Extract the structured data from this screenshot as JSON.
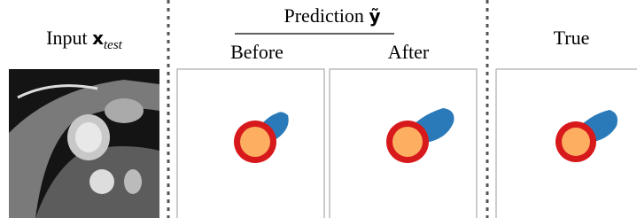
{
  "header": {
    "input": {
      "text": "Input",
      "symbol": "x",
      "subscript": "test"
    },
    "prediction": {
      "text": "Prediction",
      "symbol": "ỹ",
      "before": "Before",
      "after": "After"
    },
    "true": "True"
  }
}
